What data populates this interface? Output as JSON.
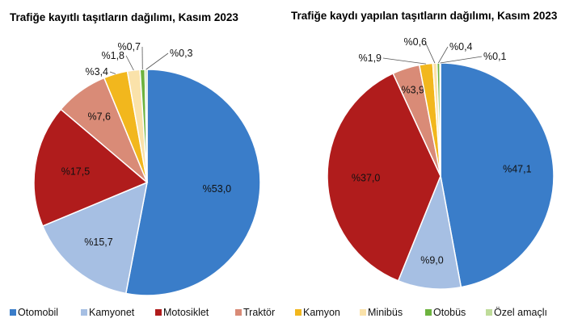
{
  "chart_data": [
    {
      "type": "pie",
      "title": "Trafiğe kayıtlı taşıtların dağılımı, Kasım 2023",
      "categories": [
        "Otomobil",
        "Kamyonet",
        "Motosiklet",
        "Traktör",
        "Kamyon",
        "Minibüs",
        "Otobüs",
        "Özel amaçlı"
      ],
      "values": [
        53.0,
        15.7,
        17.5,
        7.6,
        3.4,
        1.8,
        0.7,
        0.3
      ],
      "labels": [
        "%53,0",
        "%15,7",
        "%17,5",
        "%7,6",
        "%3,4",
        "%1,8",
        "%0,7",
        "%0,3"
      ]
    },
    {
      "type": "pie",
      "title": "Trafiğe kaydı yapılan taşıtların dağılımı, Kasım 2023",
      "categories": [
        "Otomobil",
        "Kamyonet",
        "Motosiklet",
        "Traktör",
        "Kamyon",
        "Minibüs",
        "Otobüs",
        "Özel amaçlı"
      ],
      "values": [
        47.1,
        9.0,
        37.0,
        3.9,
        1.9,
        0.6,
        0.4,
        0.1
      ],
      "labels": [
        "%47,1",
        "%9,0",
        "%37,0",
        "%3,9",
        "%1,9",
        "%0,6",
        "%0,4",
        "%0,1"
      ]
    }
  ],
  "legend": {
    "placement": "bottom",
    "items": [
      {
        "label": "Otomobil",
        "color": "#3A7DC9"
      },
      {
        "label": "Kamyonet",
        "color": "#A6BFE3"
      },
      {
        "label": "Motosiklet",
        "color": "#B01C1C"
      },
      {
        "label": "Traktör",
        "color": "#D98B77"
      },
      {
        "label": "Kamyon",
        "color": "#F2B71D"
      },
      {
        "label": "Minibüs",
        "color": "#FAE2AA"
      },
      {
        "label": "Otobüs",
        "color": "#6DB33F"
      },
      {
        "label": "Özel amaçlı",
        "color": "#BFDC9A"
      }
    ]
  }
}
